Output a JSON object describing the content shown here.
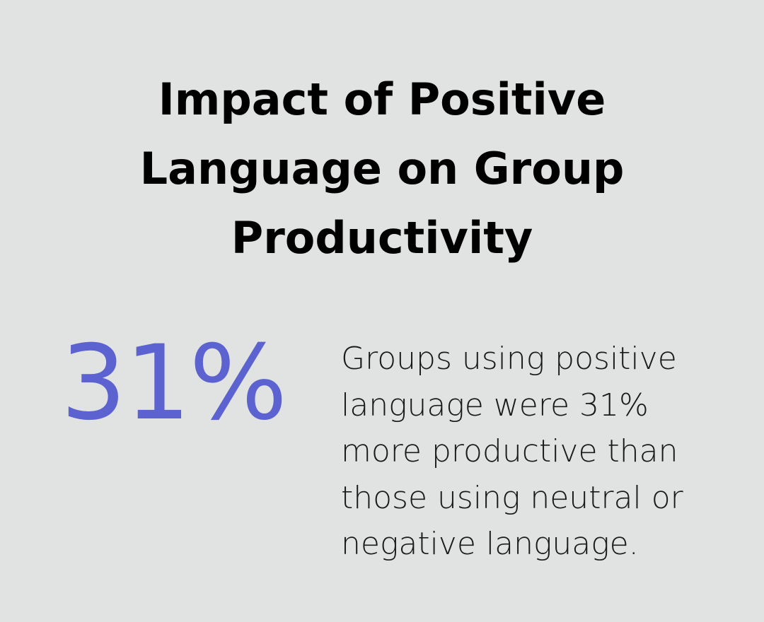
{
  "title_lines": [
    "Impact of Positive",
    "Language on Group",
    "Productivity"
  ],
  "stat": "31%",
  "description_lines": [
    "Groups using positive",
    "language were 31%",
    "more productive than",
    "those using neutral or",
    "negative language."
  ]
}
